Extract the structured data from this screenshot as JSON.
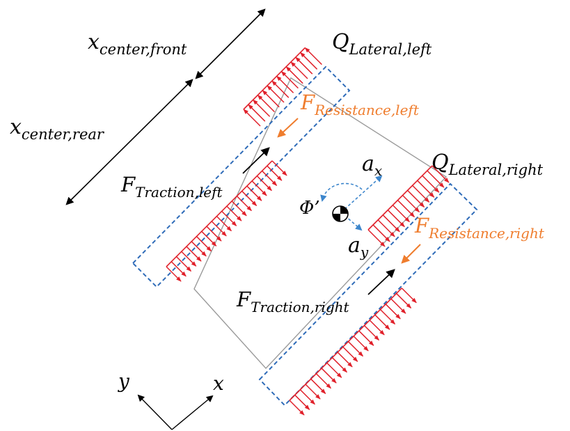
{
  "labels": {
    "x_center_front": {
      "base": "x",
      "sub": "center,front"
    },
    "x_center_rear": {
      "base": "x",
      "sub": "center,rear"
    },
    "q_lateral_left": {
      "base": "Q",
      "sub": "Lateral,left"
    },
    "q_lateral_right": {
      "base": "Q",
      "sub": "Lateral,right"
    },
    "f_resistance_left": {
      "base": "F",
      "sub": "Resistance,left"
    },
    "f_resistance_right": {
      "base": "F",
      "sub": "Resistance,right"
    },
    "f_traction_left": {
      "base": "F",
      "sub": "Traction,left"
    },
    "f_traction_right": {
      "base": "F",
      "sub": "Traction,right"
    },
    "a_x": {
      "base": "a",
      "sub": "x"
    },
    "a_y": {
      "base": "a",
      "sub": "y"
    },
    "yaw_rate": "Φ’",
    "axis_x": "x",
    "axis_y": "y"
  },
  "colors": {
    "track_outline": "#2e6bb8",
    "lateral_load": "#e0202a",
    "resistance": "#ef7d2e",
    "traction": "#000000",
    "acceleration": "#3d86cc",
    "text": "#000000"
  }
}
